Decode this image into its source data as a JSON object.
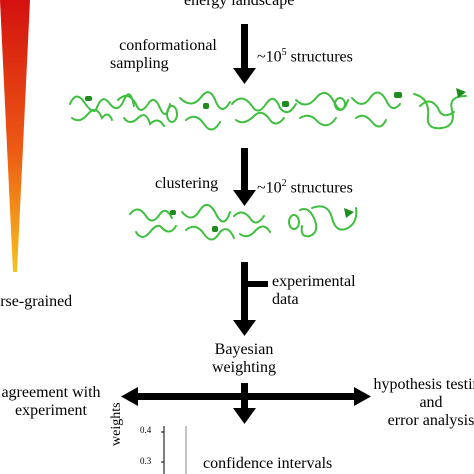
{
  "top_label": "energy landscape",
  "gradient_label": "coarse-grained",
  "step1": {
    "left": "conformational sampling",
    "left_line1": "conformational",
    "left_line2": "sampling",
    "right": "~10",
    "right_exp": "5",
    "right_suffix": " structures"
  },
  "step2": {
    "left": "clustering",
    "right": "~10",
    "right_exp": "2",
    "right_suffix": " structures"
  },
  "input": {
    "line1": "experimental",
    "line2": "data"
  },
  "bayes": {
    "line1": "Bayesian",
    "line2": "weighting"
  },
  "left_output": {
    "line1": "agreement with",
    "line2": "experiment"
  },
  "right_output": {
    "line1": "hypothesis testing",
    "line2": "and",
    "line3": "error analysis"
  },
  "bottom_output": "confidence intervals",
  "mini_plot": {
    "ylabel": "weights",
    "ticks": [
      "0.4",
      "0.3"
    ]
  },
  "colors": {
    "protein": "#3fbf3f",
    "helix": "#1e8c1e",
    "gradient_top": "#d41010",
    "gradient_bottom": "#f4b21e"
  }
}
